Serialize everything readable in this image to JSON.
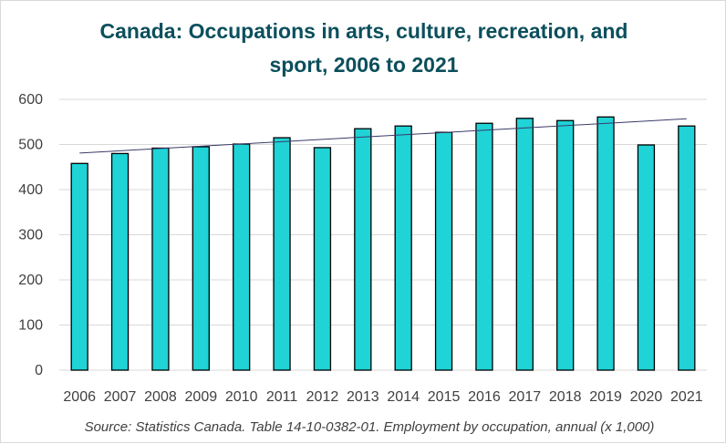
{
  "chart_data": {
    "type": "bar",
    "title_lines": [
      "Canada: Occupations in arts, culture, recreation, and",
      "sport, 2006 to 2021"
    ],
    "categories": [
      "2006",
      "2007",
      "2008",
      "2009",
      "2010",
      "2011",
      "2012",
      "2013",
      "2014",
      "2015",
      "2016",
      "2017",
      "2018",
      "2019",
      "2020",
      "2021"
    ],
    "values": [
      458,
      480,
      492,
      495,
      501,
      515,
      493,
      535,
      541,
      527,
      547,
      558,
      553,
      561,
      499,
      541
    ],
    "xlabel": "",
    "ylabel": "",
    "ylim": [
      0,
      600
    ],
    "y_ticks": [
      0,
      100,
      200,
      300,
      400,
      500,
      600
    ],
    "gridlines": true,
    "trendline": {
      "type": "linear",
      "start_value": 481,
      "end_value": 557
    },
    "colors": {
      "bar_fill": "#1fd3d6",
      "bar_stroke": "#000000",
      "grid": "#d9d9d9",
      "trendline": "#3a3a6a",
      "title": "#0b4f5c"
    },
    "source": "Source: Statistics Canada. Table 14-10-0382-01. Employment by occupation, annual (x 1,000)"
  }
}
